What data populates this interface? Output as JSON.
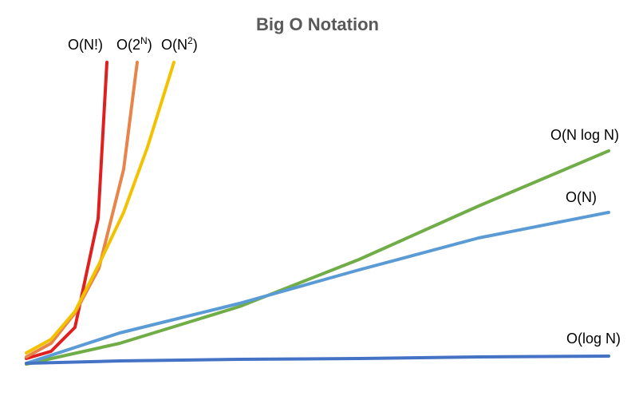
{
  "chart_data": {
    "type": "line",
    "title": "Big O Notation",
    "xlabel": "",
    "ylabel": "",
    "grid": false,
    "legend": "none",
    "series": [
      {
        "name": "O(N!)",
        "label_base": "O(N!)",
        "label_sup": "",
        "label_end": "",
        "color": "#e02020"
      },
      {
        "name": "O(2N)",
        "label_base": "O(2",
        "label_sup": "N",
        "label_end": ")",
        "color": "#e8844a"
      },
      {
        "name": "O(N2)",
        "label_base": "O(N",
        "label_sup": "2",
        "label_end": ")",
        "color": "#f2c200"
      },
      {
        "name": "O(N log N)",
        "label_base": "O(N log N)",
        "label_sup": "",
        "label_end": "",
        "color": "#70ad47"
      },
      {
        "name": "O(N)",
        "label_base": "O(N)",
        "label_sup": "",
        "label_end": "",
        "color": "#5b9bd5"
      },
      {
        "name": "O(log N)",
        "label_base": "O(log N)",
        "label_sup": "",
        "label_end": "",
        "color": "#4472c4"
      }
    ]
  }
}
